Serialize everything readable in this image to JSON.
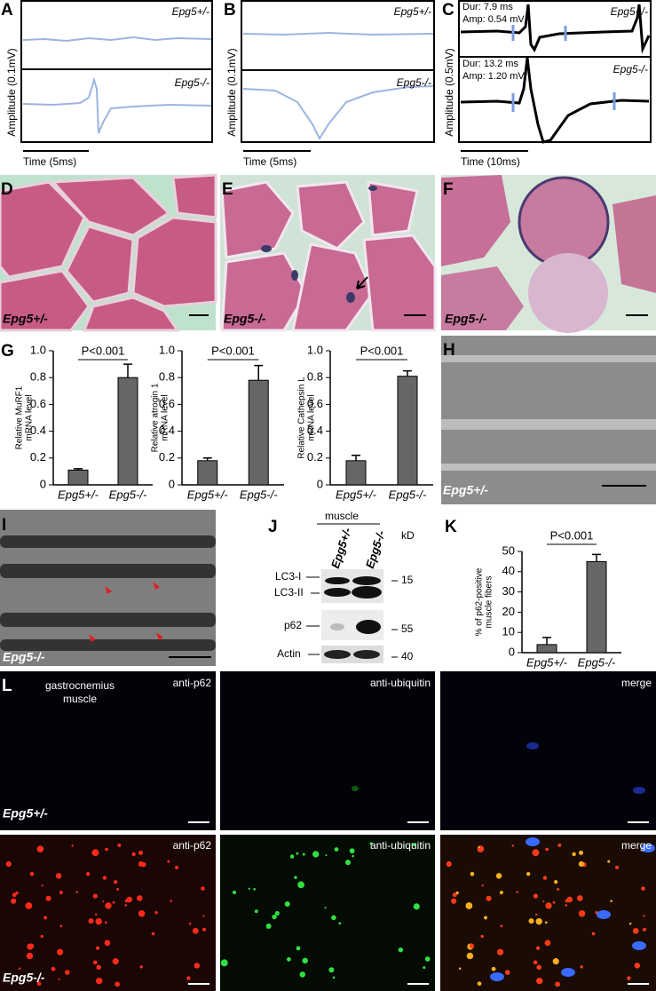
{
  "panel_labels": [
    "A",
    "B",
    "C",
    "D",
    "E",
    "F",
    "G",
    "H",
    "I",
    "J",
    "K",
    "L"
  ],
  "emg": [
    {
      "top_label": "Epg5+/-",
      "bottom_label": "Epg5-/-",
      "y_label": "Amplitude (0.1mV)",
      "x_label": "Time (5ms)"
    },
    {
      "top_label": "Epg5+/-",
      "bottom_label": "Epg5-/-",
      "y_label": "Amplitude (0.1mV)",
      "x_label": "Time (5ms)"
    },
    {
      "top_label": "Epg5+/-",
      "bottom_label": "Epg5-/-",
      "y_label": "Amplitude (0.5mV)",
      "x_label": "Time (10ms)",
      "top_notes": [
        "Dur: 7.9 ms",
        "Amp: 0.54 mV"
      ],
      "bottom_notes": [
        "Dur: 13.2 ms",
        "Amp: 1.20 mV"
      ]
    }
  ],
  "histology": [
    {
      "label": "Epg5+/-"
    },
    {
      "label": "Epg5-/-"
    },
    {
      "label": "Epg5-/-"
    }
  ],
  "em": [
    {
      "label": "Epg5+/-"
    },
    {
      "label": "Epg5-/-"
    }
  ],
  "western": {
    "group": "muscle",
    "unit": "kD",
    "lanes": [
      "Epg5+/-",
      "Epg5-/-"
    ],
    "bands": [
      "LC3-I",
      "LC3-II",
      "p62",
      "Actin"
    ],
    "markers": [
      "15",
      "55",
      "40"
    ]
  },
  "immunofluorescence": {
    "tissue": [
      "gastrocnemius",
      "muscle"
    ],
    "channels": [
      "anti-p62",
      "anti-ubiquitin",
      "merge"
    ],
    "rows": [
      "Epg5+/-",
      "Epg5-/-"
    ]
  },
  "chart_data": [
    {
      "type": "bar",
      "y_label": [
        "Relative MuRF1",
        "mRNA level"
      ],
      "categories": [
        "Epg5+/-",
        "Epg5-/-"
      ],
      "values": [
        0.11,
        0.8
      ],
      "errors": [
        0.01,
        0.1
      ],
      "color": "#666666",
      "ylim": [
        0,
        1
      ],
      "yticks": [
        0,
        0.2,
        0.4,
        0.6,
        0.8,
        {
          "value": 1,
          "label": "1.0"
        }
      ],
      "annotation": "P<0.001"
    },
    {
      "type": "bar",
      "y_label": [
        "Relative atrogin 1",
        "mRNA level"
      ],
      "categories": [
        "Epg5+/-",
        "Epg5-/-"
      ],
      "values": [
        0.18,
        0.78
      ],
      "errors": [
        0.02,
        0.11
      ],
      "color": "#666666",
      "ylim": [
        0,
        1
      ],
      "yticks": [
        0,
        0.2,
        0.4,
        0.6,
        0.8,
        {
          "value": 1,
          "label": "1.0"
        }
      ],
      "annotation": "P<0.001"
    },
    {
      "type": "bar",
      "y_label": [
        "Relative Cathepsin L",
        "mRNA level"
      ],
      "categories": [
        "Epg5+/-",
        "Epg5-/-"
      ],
      "values": [
        0.18,
        0.81
      ],
      "errors": [
        0.04,
        0.04
      ],
      "color": "#666666",
      "ylim": [
        0,
        1
      ],
      "yticks": [
        0,
        0.2,
        0.4,
        0.6,
        0.8,
        {
          "value": 1,
          "label": "1.0"
        }
      ],
      "annotation": "P<0.001"
    },
    {
      "type": "bar",
      "y_label": [
        "% of p62-positive",
        "muscle fibers"
      ],
      "categories": [
        "Epg5+/-",
        "Epg5-/-"
      ],
      "values": [
        4,
        45
      ],
      "errors": [
        3.5,
        3.5
      ],
      "color": "#666666",
      "ylim": [
        0,
        50
      ],
      "yticks": [
        0,
        10,
        20,
        30,
        40,
        50
      ],
      "annotation": "P<0.001"
    }
  ]
}
